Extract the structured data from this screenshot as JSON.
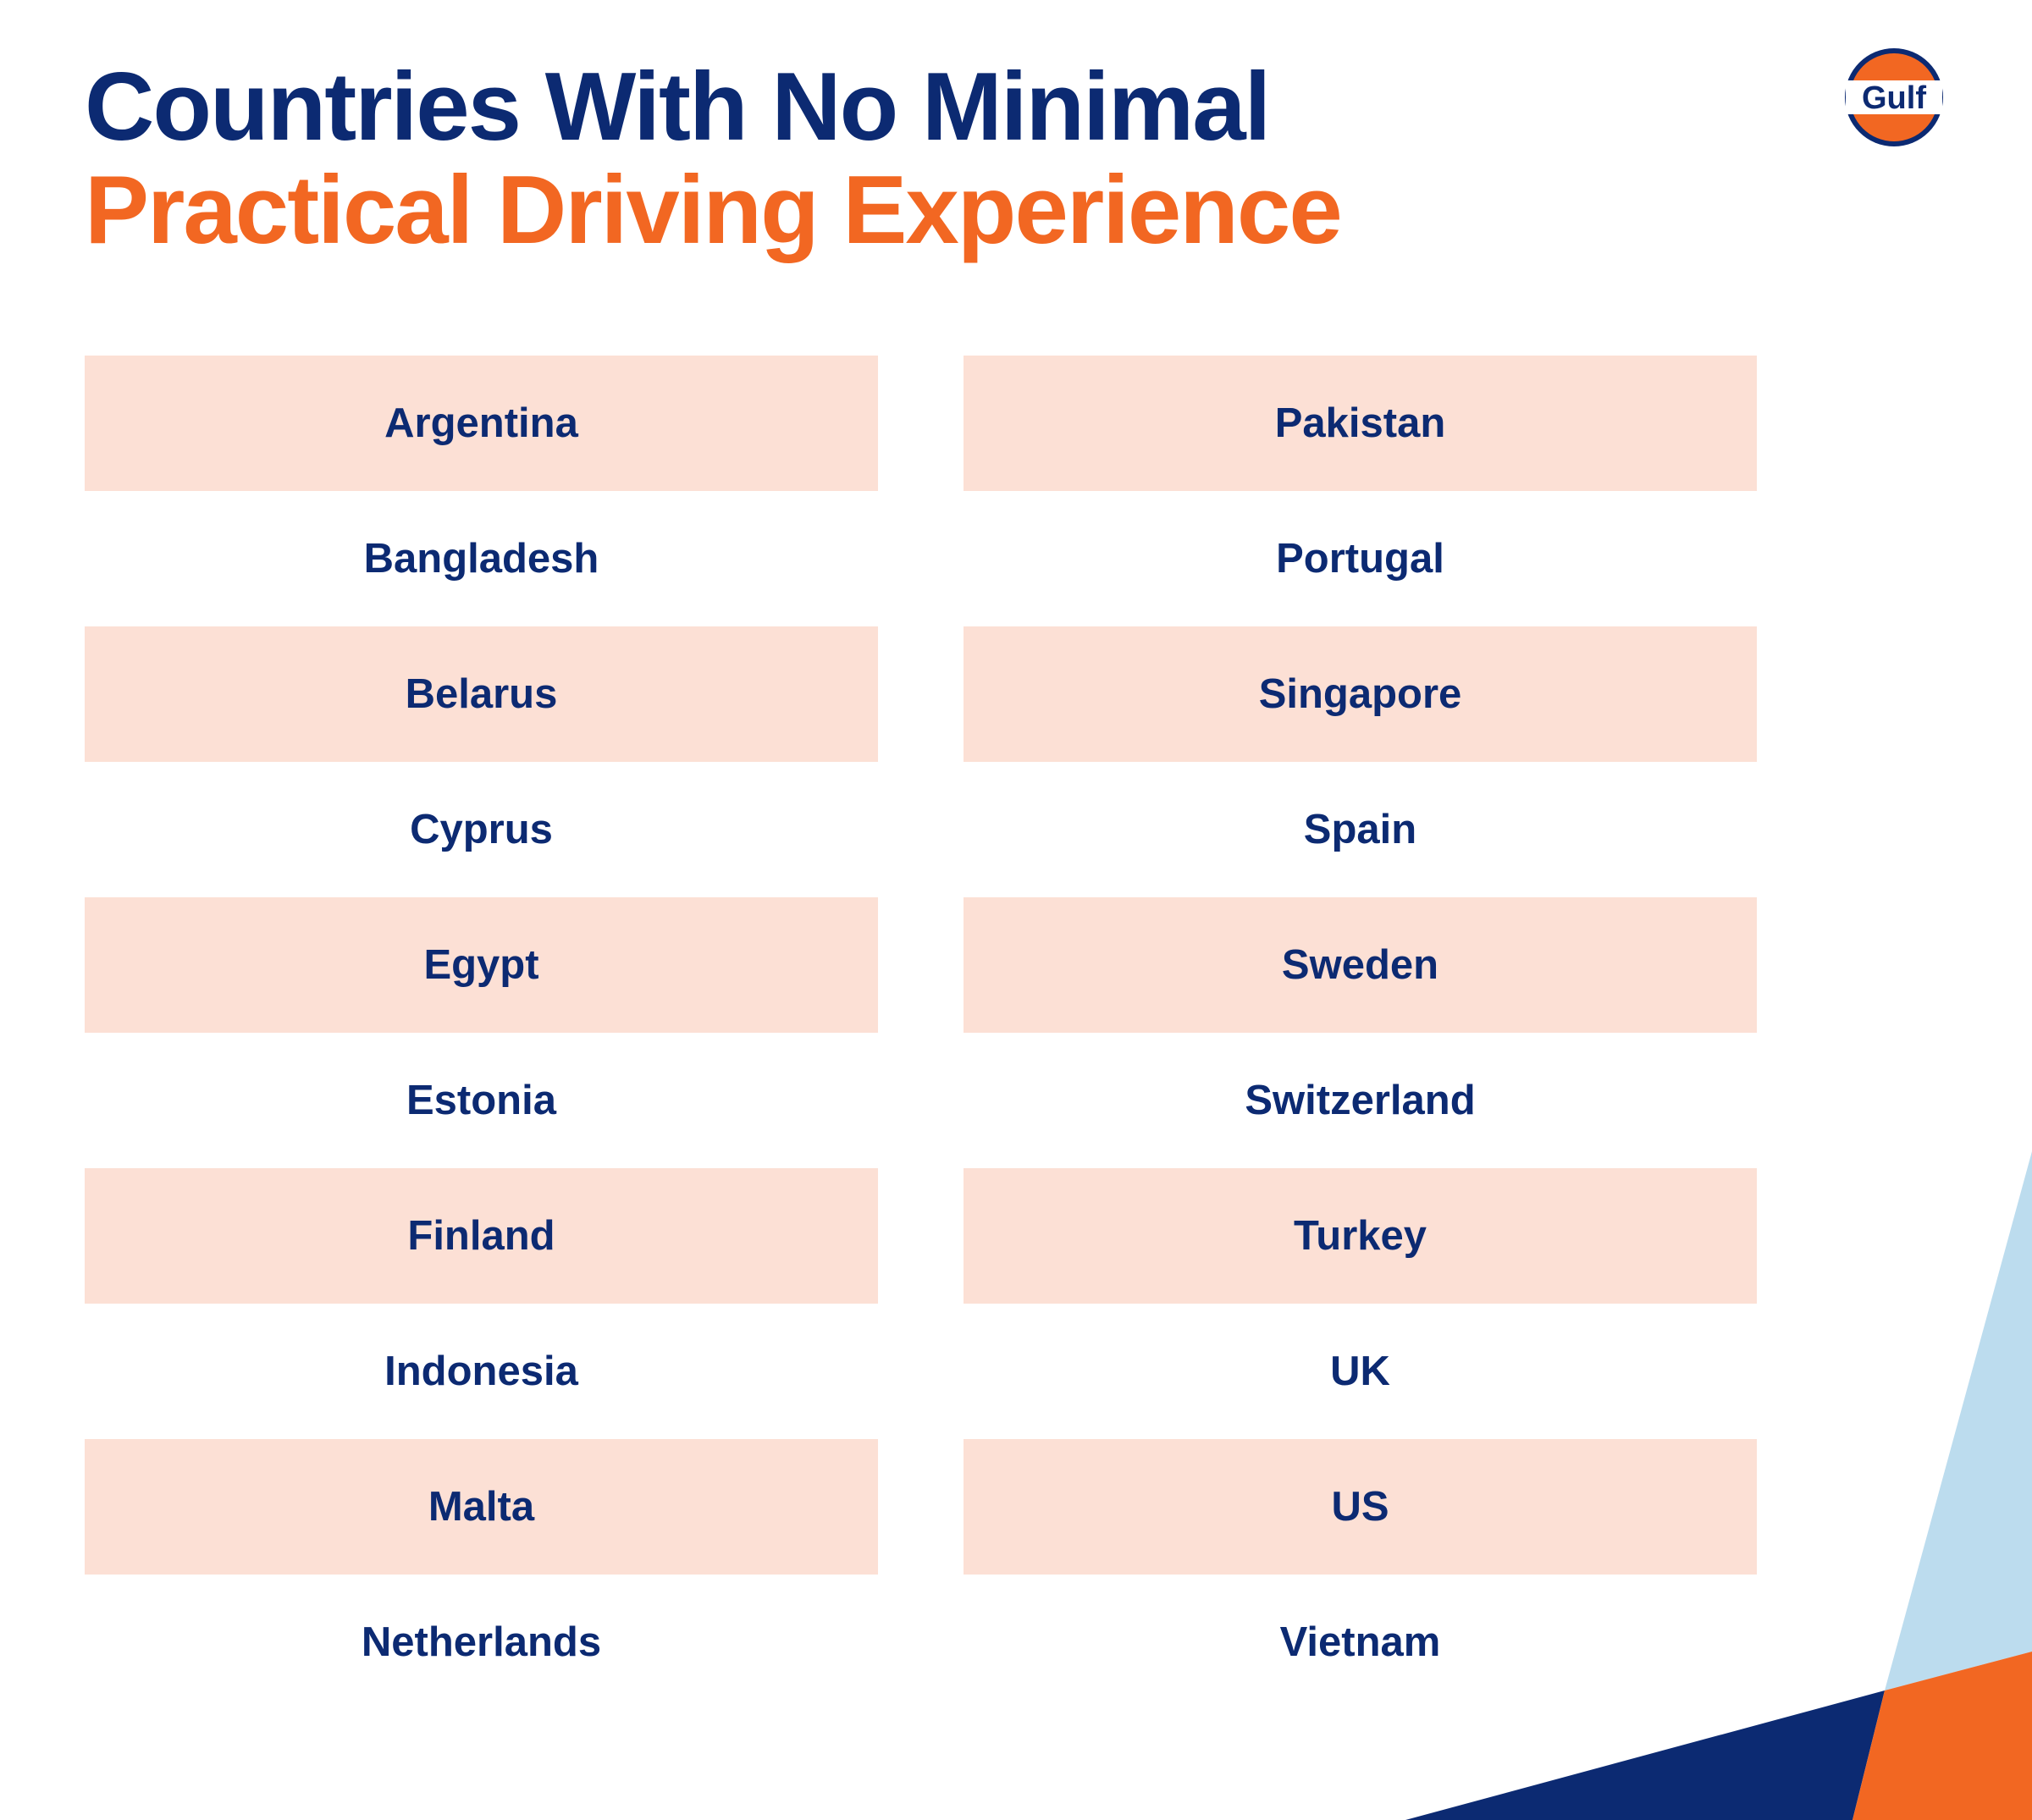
{
  "header": {
    "title_line1": "Countries With No Minimal",
    "title_line2": "Practical Driving Experience"
  },
  "logo": "Gulf",
  "columns": [
    [
      "Argentina",
      "Bangladesh",
      "Belarus",
      "Cyprus",
      "Egypt",
      "Estonia",
      "Finland",
      "Indonesia",
      "Malta",
      "Netherlands"
    ],
    [
      "Pakistan",
      "Portugal",
      "Singapore",
      "Spain",
      "Sweden",
      "Switzerland",
      "Turkey",
      "UK",
      "US",
      "Vietnam"
    ]
  ]
}
